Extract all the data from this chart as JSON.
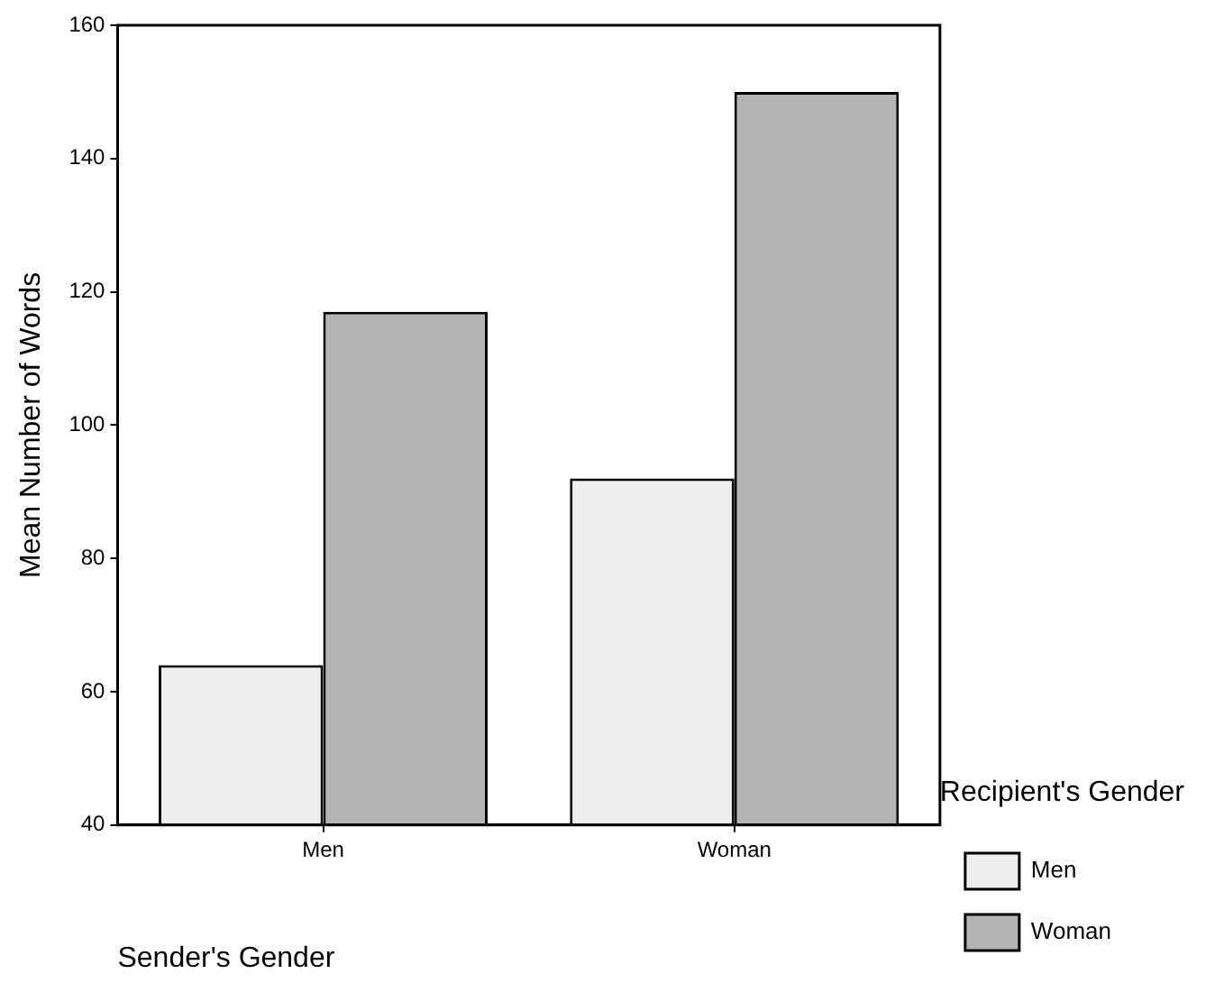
{
  "chart_data": {
    "type": "bar",
    "xlabel": "Sender's Gender",
    "ylabel": "Mean Number of Words",
    "legend_title": "Recipient's Gender",
    "categories": [
      "Men",
      "Woman"
    ],
    "series": [
      {
        "name": "Men",
        "color": "#eeeeee",
        "values": [
          64,
          92
        ]
      },
      {
        "name": "Woman",
        "color": "#b4b4b4",
        "values": [
          117,
          150
        ]
      }
    ],
    "ylim": [
      40,
      160
    ],
    "yticks": [
      40,
      60,
      80,
      100,
      120,
      140,
      160
    ],
    "grid": false,
    "legend": "right"
  }
}
